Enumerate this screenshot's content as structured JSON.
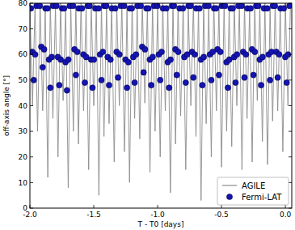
{
  "chart_data": {
    "type": "line",
    "xlabel": "T - T0 [days]",
    "ylabel": "off-axis angle [°]",
    "xlim": [
      -2.0,
      0.05
    ],
    "ylim": [
      0,
      80
    ],
    "xticks": [
      {
        "value": -2.0,
        "label": "-2.0"
      },
      {
        "value": -1.5,
        "label": "-1.5"
      },
      {
        "value": -1.0,
        "label": "-1.0"
      },
      {
        "value": -0.5,
        "label": "-0.5"
      },
      {
        "value": 0.0,
        "label": "0.0"
      }
    ],
    "yticks": [
      0,
      10,
      20,
      30,
      40,
      50,
      60,
      70,
      80
    ],
    "grid": false,
    "legend": "lower right",
    "series": [
      {
        "name": "AGILE",
        "type": "line",
        "color": "#8c8c8c",
        "x": [
          -2.0,
          -1.98,
          -1.96,
          -1.94,
          -1.92,
          -1.9,
          -1.88,
          -1.86,
          -1.84,
          -1.82,
          -1.8,
          -1.78,
          -1.76,
          -1.74,
          -1.72,
          -1.7,
          -1.68,
          -1.66,
          -1.64,
          -1.62,
          -1.6,
          -1.58,
          -1.56,
          -1.54,
          -1.52,
          -1.5,
          -1.48,
          -1.46,
          -1.44,
          -1.42,
          -1.4,
          -1.38,
          -1.36,
          -1.34,
          -1.32,
          -1.3,
          -1.28,
          -1.26,
          -1.24,
          -1.22,
          -1.2,
          -1.18,
          -1.16,
          -1.14,
          -1.12,
          -1.1,
          -1.08,
          -1.06,
          -1.04,
          -1.02,
          -1.0,
          -0.98,
          -0.96,
          -0.94,
          -0.92,
          -0.9,
          -0.88,
          -0.86,
          -0.84,
          -0.82,
          -0.8,
          -0.78,
          -0.76,
          -0.74,
          -0.72,
          -0.7,
          -0.68,
          -0.66,
          -0.64,
          -0.62,
          -0.6,
          -0.58,
          -0.56,
          -0.54,
          -0.52,
          -0.5,
          -0.48,
          -0.46,
          -0.44,
          -0.42,
          -0.4,
          -0.38,
          -0.36,
          -0.34,
          -0.32,
          -0.3,
          -0.28,
          -0.26,
          -0.24,
          -0.22,
          -0.2,
          -0.18,
          -0.16,
          -0.14,
          -0.12,
          -0.1,
          -0.08,
          -0.06,
          -0.04,
          -0.02,
          0.0,
          0.02,
          0.04
        ],
        "values": [
          80,
          40,
          79,
          30,
          80,
          38,
          78,
          12,
          80,
          35,
          79,
          20,
          80,
          42,
          78,
          8,
          80,
          30,
          79,
          25,
          80,
          38,
          78,
          15,
          80,
          40,
          79,
          5,
          80,
          28,
          78,
          33,
          80,
          18,
          79,
          40,
          80,
          22,
          78,
          10,
          80,
          35,
          79,
          27,
          80,
          41,
          78,
          14,
          80,
          30,
          79,
          20,
          80,
          38,
          78,
          6,
          80,
          25,
          79,
          36,
          80,
          15,
          78,
          40,
          80,
          28,
          79,
          3,
          80,
          33,
          78,
          20,
          80,
          38,
          79,
          16,
          80,
          30,
          78,
          24,
          80,
          40,
          79,
          15,
          80,
          35,
          78,
          18,
          80,
          42,
          79,
          26,
          80,
          17,
          78,
          34,
          80,
          38,
          79,
          22,
          80,
          40,
          80
        ]
      },
      {
        "name": "Fermi-LAT",
        "type": "scatter",
        "color": "#1414b4",
        "marker": "circle",
        "x": [
          -1.992,
          -1.981,
          -1.97,
          -1.959,
          -1.948,
          -1.922,
          -1.911,
          -1.9,
          -1.889,
          -1.878,
          -1.862,
          -1.851,
          -1.84,
          -1.829,
          -1.818,
          -1.792,
          -1.781,
          -1.77,
          -1.759,
          -1.748,
          -1.732,
          -1.721,
          -1.71,
          -1.699,
          -1.688,
          -1.662,
          -1.651,
          -1.64,
          -1.629,
          -1.618,
          -1.592,
          -1.581,
          -1.57,
          -1.559,
          -1.548,
          -1.532,
          -1.521,
          -1.51,
          -1.499,
          -1.488,
          -1.462,
          -1.451,
          -1.44,
          -1.429,
          -1.418,
          -1.402,
          -1.391,
          -1.38,
          -1.369,
          -1.358,
          -1.332,
          -1.321,
          -1.31,
          -1.299,
          -1.288,
          -1.262,
          -1.251,
          -1.24,
          -1.229,
          -1.218,
          -1.202,
          -1.191,
          -1.18,
          -1.169,
          -1.158,
          -1.132,
          -1.121,
          -1.11,
          -1.099,
          -1.088,
          -1.072,
          -1.061,
          -1.05,
          -1.039,
          -1.028,
          -1.002,
          -0.991,
          -0.98,
          -0.969,
          -0.958,
          -0.932,
          -0.921,
          -0.91,
          -0.899,
          -0.888,
          -0.872,
          -0.861,
          -0.85,
          -0.839,
          -0.828,
          -0.802,
          -0.791,
          -0.78,
          -0.769,
          -0.758,
          -0.742,
          -0.731,
          -0.72,
          -0.709,
          -0.698,
          -0.672,
          -0.661,
          -0.65,
          -0.639,
          -0.628,
          -0.602,
          -0.591,
          -0.58,
          -0.569,
          -0.558,
          -0.542,
          -0.531,
          -0.52,
          -0.509,
          -0.498,
          -0.472,
          -0.461,
          -0.45,
          -0.439,
          -0.428,
          -0.412,
          -0.401,
          -0.39,
          -0.379,
          -0.368,
          -0.342,
          -0.331,
          -0.32,
          -0.309,
          -0.298,
          -0.272,
          -0.261,
          -0.25,
          -0.239,
          -0.228,
          -0.212,
          -0.201,
          -0.19,
          -0.179,
          -0.168,
          -0.142,
          -0.131,
          -0.12,
          -0.109,
          -0.098,
          -0.082,
          -0.071,
          -0.06,
          -0.049,
          -0.038,
          -0.012,
          -0.001,
          0.01,
          0.021,
          0.032
        ],
        "values": [
          78,
          61,
          50,
          60,
          79,
          79,
          63,
          55,
          62,
          78,
          78,
          58,
          47,
          59,
          79,
          79,
          59,
          48,
          58,
          78,
          78,
          57,
          46,
          58,
          79,
          79,
          62,
          52,
          61,
          78,
          78,
          60,
          49,
          59,
          79,
          79,
          58,
          47,
          58,
          78,
          78,
          60,
          50,
          61,
          79,
          79,
          59,
          48,
          58,
          78,
          78,
          61,
          51,
          60,
          79,
          79,
          58,
          47,
          57,
          78,
          78,
          59,
          49,
          60,
          79,
          79,
          63,
          53,
          62,
          78,
          78,
          58,
          48,
          59,
          79,
          79,
          60,
          50,
          61,
          78,
          78,
          57,
          47,
          58,
          79,
          79,
          62,
          52,
          61,
          78,
          78,
          59,
          49,
          60,
          79,
          79,
          61,
          51,
          60,
          78,
          78,
          58,
          48,
          59,
          79,
          79,
          60,
          50,
          61,
          78,
          78,
          62,
          52,
          61,
          79,
          79,
          57,
          47,
          58,
          78,
          78,
          59,
          49,
          60,
          79,
          79,
          61,
          51,
          60,
          78,
          78,
          62,
          52,
          61,
          79,
          79,
          58,
          48,
          59,
          78,
          78,
          60,
          50,
          61,
          79,
          79,
          61,
          51,
          60,
          78,
          78,
          59,
          49,
          60,
          79
        ]
      }
    ]
  }
}
